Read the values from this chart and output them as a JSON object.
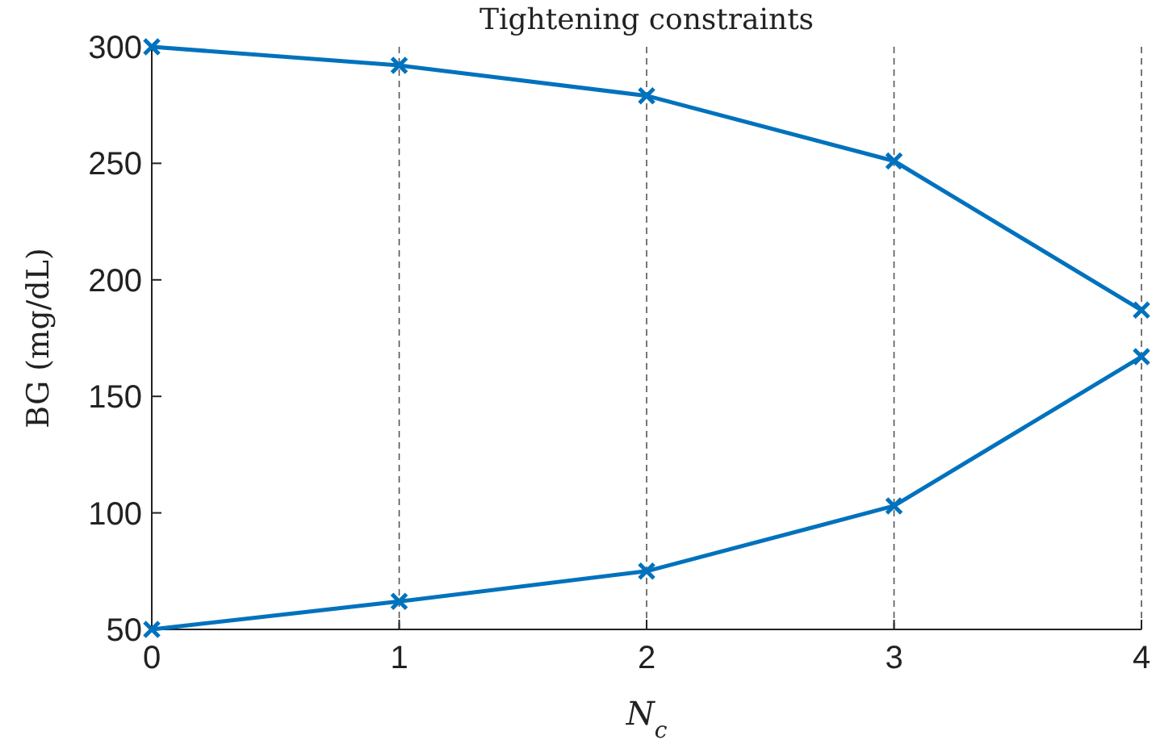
{
  "chart_data": {
    "type": "line",
    "title": "Tightening constraints",
    "xlabel": "N$_{c}$",
    "ylabel": "BG (mg/dL)",
    "x": [
      0,
      1,
      2,
      3,
      4
    ],
    "series": [
      {
        "color": "#0072bd",
        "values": [
          300,
          292,
          279,
          251,
          187
        ]
      },
      {
        "color": "#0072bd",
        "values": [
          50,
          62,
          75,
          103,
          167
        ]
      }
    ],
    "xlim": [
      0,
      4
    ],
    "xticks": [
      0,
      1,
      2,
      3,
      4
    ],
    "ylim": [
      50,
      300
    ],
    "yticks": [
      50,
      100,
      150,
      200,
      250,
      300
    ],
    "grid": "x",
    "marker": "cross",
    "line_style": "solid"
  }
}
